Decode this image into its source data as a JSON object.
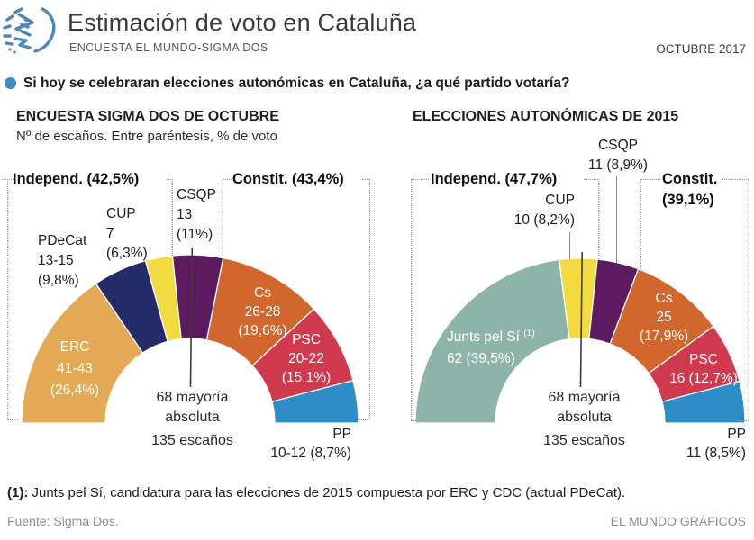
{
  "header": {
    "title": "Estimación de voto en Cataluña",
    "subtitle": "ENCUESTA EL MUNDO-SIGMA DOS",
    "edition": "OCTUBRE 2017",
    "logo_color": "#4d87bc"
  },
  "question": "Si hoy se celebraran elecciones autonómicas en Cataluña, ¿a qué partido votaría?",
  "footnote": {
    "ref": "(1):",
    "text": " Junts pel Sí, candidatura para las elecciones de 2015 compuesta por ERC y CDC (actual PDeCat)."
  },
  "source": "Fuente: Sigma Dos.",
  "credit": "EL MUNDO GRÁFICOS",
  "chart_data": [
    {
      "type": "pie",
      "shape": "semicircle-donut",
      "title": "ENCUESTA SIGMA DOS DE OCTUBRE",
      "subtitle": "Nº de escaños. Entre paréntesis, % de voto",
      "total_seats": 135,
      "majority_seats": 68,
      "center_label": "68 mayoría\nabsoluta",
      "total_label": "135 escaños",
      "blocs": {
        "left": "Independ. (42,5%)",
        "right": "Constit. (43,4%)"
      },
      "segments": [
        {
          "party": "ERC",
          "seats": "41-43",
          "seats_value": 42,
          "vote_share": "26,4%",
          "color": "#e3a954",
          "label": "ERC\n41-43\n(26,4%)"
        },
        {
          "party": "PDeCat",
          "seats": "13-15",
          "seats_value": 14,
          "vote_share": "9,8%",
          "color": "#232b68",
          "label": "PDeCat\n13-15\n(9,8%)"
        },
        {
          "party": "CUP",
          "seats": "7",
          "seats_value": 7,
          "vote_share": "6,3%",
          "color": "#f3da3e",
          "label": "CUP\n7\n(6,3%)"
        },
        {
          "party": "CSQP",
          "seats": "13",
          "seats_value": 13,
          "vote_share": "11%",
          "color": "#5d1a5f",
          "label": "CSQP\n13\n(11%)"
        },
        {
          "party": "Cs",
          "seats": "26-28",
          "seats_value": 27,
          "vote_share": "19,6%",
          "color": "#d2672d",
          "label": "Cs\n26-28\n(19,6%)"
        },
        {
          "party": "PSC",
          "seats": "20-22",
          "seats_value": 21,
          "vote_share": "15,1%",
          "color": "#d13a4e",
          "label": "PSC\n20-22\n(15,1%)"
        },
        {
          "party": "PP",
          "seats": "10-12",
          "seats_value": 11,
          "vote_share": "8,7%",
          "color": "#2e8cc6",
          "label": "PP\n10-12 (8,7%)"
        }
      ]
    },
    {
      "type": "pie",
      "shape": "semicircle-donut",
      "title": "ELECCIONES AUTONÓMICAS DE 2015",
      "total_seats": 135,
      "majority_seats": 68,
      "center_label": "68 mayoría\nabsoluta",
      "total_label": "135 escaños",
      "blocs": {
        "left": "Independ. (47,7%)",
        "right": "Constit.\n(39,1%)"
      },
      "segments": [
        {
          "party": "Junts pel Sí",
          "note_ref": "(1)",
          "seats": "62",
          "seats_value": 62,
          "vote_share": "39,5%",
          "color": "#8db4a9",
          "label_name": "Junts pel Sí",
          "label_value": "62 (39,5%)"
        },
        {
          "party": "CUP",
          "seats": "10",
          "seats_value": 10,
          "vote_share": "8,2%",
          "color": "#f3da3e",
          "label": "CUP\n10 (8,2%)"
        },
        {
          "party": "CSQP",
          "seats": "11",
          "seats_value": 11,
          "vote_share": "8,9%",
          "color": "#5d1a5f",
          "label": "CSQP\n11 (8,9%)"
        },
        {
          "party": "Cs",
          "seats": "25",
          "seats_value": 25,
          "vote_share": "17,9%",
          "color": "#d2672d",
          "label": "Cs\n25\n(17,9%)"
        },
        {
          "party": "PSC",
          "seats": "16",
          "seats_value": 16,
          "vote_share": "12,7%",
          "color": "#d13a4e",
          "label": "PSC\n16 (12,7%)"
        },
        {
          "party": "PP",
          "seats": "11",
          "seats_value": 11,
          "vote_share": "8,5%",
          "color": "#2e8cc6",
          "label": "PP\n11 (8,5%)"
        }
      ]
    }
  ]
}
